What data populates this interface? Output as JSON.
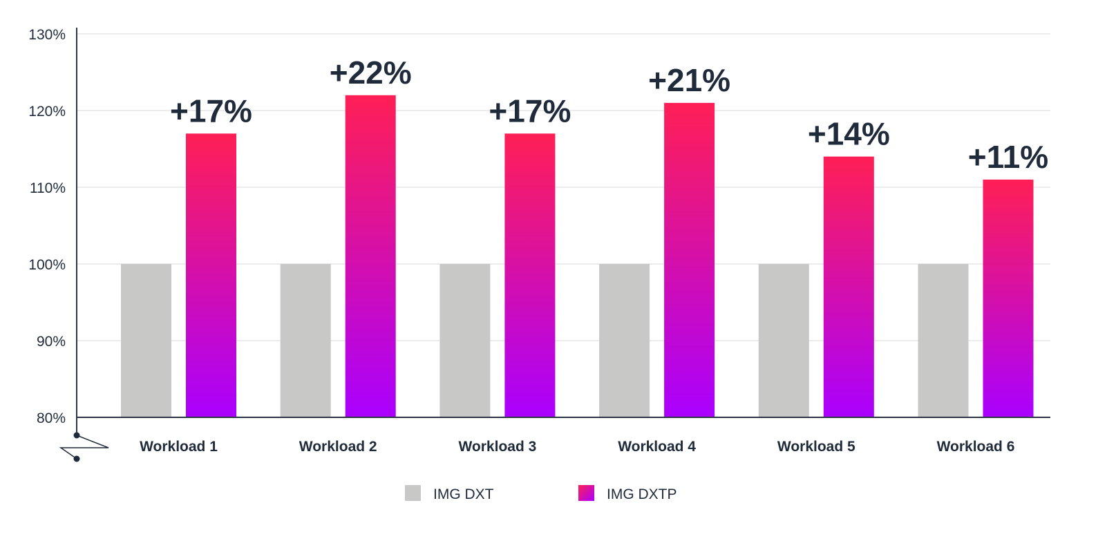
{
  "chart_data": {
    "type": "bar",
    "title": "",
    "xlabel": "",
    "ylabel": "",
    "ylim": [
      80,
      130
    ],
    "yticks": [
      80,
      90,
      100,
      110,
      120,
      130
    ],
    "ytick_labels": [
      "80%",
      "90%",
      "100%",
      "110%",
      "120%",
      "130%"
    ],
    "grid": true,
    "axis_break": true,
    "categories": [
      "Workload 1",
      "Workload 2",
      "Workload 3",
      "Workload 4",
      "Workload 5",
      "Workload 6"
    ],
    "series": [
      {
        "name": "IMG DXT",
        "color": "#c8c9c7",
        "values": [
          100,
          100,
          100,
          100,
          100,
          100
        ]
      },
      {
        "name": "IMG DXTP",
        "color_top": "#ff1f55",
        "color_bottom": "#aa00ff",
        "values": [
          117,
          122,
          117,
          121,
          114,
          111
        ]
      }
    ],
    "data_labels": [
      "+17%",
      "+22%",
      "+17%",
      "+21%",
      "+14%",
      "+11%"
    ],
    "legend_position": "bottom-center"
  }
}
